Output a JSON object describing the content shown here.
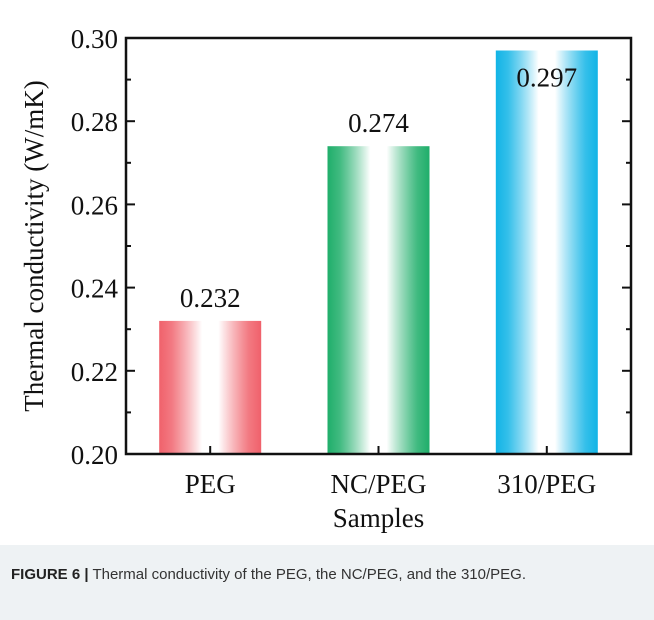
{
  "chart_data": {
    "type": "bar",
    "categories": [
      "PEG",
      "NC/PEG",
      "310/PEG"
    ],
    "values": [
      0.232,
      0.274,
      0.297
    ],
    "value_labels": [
      "0.232",
      "0.274",
      "0.297"
    ],
    "title": "",
    "xlabel": "Samples",
    "ylabel": "Thermal conductivity (W/mK)",
    "ylim": [
      0.2,
      0.3
    ],
    "yticks": [
      0.2,
      0.22,
      0.24,
      0.26,
      0.28,
      0.3
    ],
    "ytick_labels": [
      "0.20",
      "0.22",
      "0.24",
      "0.26",
      "0.28",
      "0.30"
    ],
    "bar_colors": [
      "#f0616b",
      "#1fae6a",
      "#11b4e6"
    ],
    "grid": false,
    "legend": false
  },
  "caption": {
    "label": "FIGURE 6 |",
    "text": " Thermal conductivity of the PEG, the NC/PEG, and the 310/PEG."
  }
}
